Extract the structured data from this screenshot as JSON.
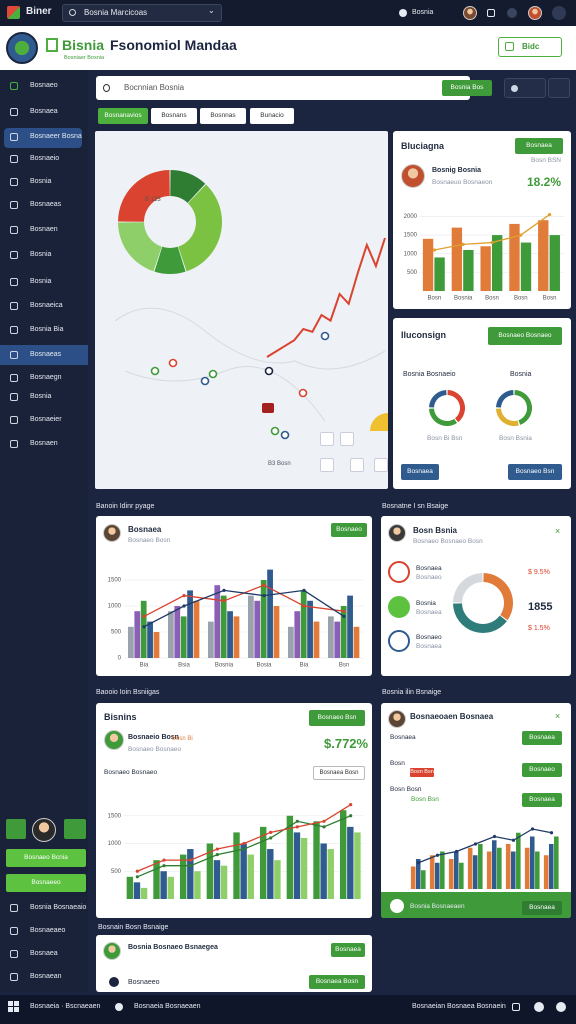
{
  "topbar": {
    "brand": "Biner",
    "search": "Bosnia Marcicoas",
    "user": "Bosnia"
  },
  "header": {
    "title_a": "Bisnia",
    "title_b": "Fsonomiol Mandaa",
    "subtitle": "Bosniaer Bosnia",
    "button": "Bidc"
  },
  "sidebar": {
    "items": [
      "Bosnaeo",
      "Bosnaea",
      "Bosnaeer Bosna",
      "Bosnaeio",
      "Bosnia",
      "Bosnaeas",
      "Bosnaen",
      "Bosnia",
      "Bosnia",
      "Bosnaeica",
      "Bosnia Bia",
      "Bosnaeas",
      "Bosnaegn",
      "Bosnia",
      "Bosnaeier",
      "Bosnaen"
    ],
    "actions": [
      "Bosnaeo Bcnia",
      "Bosnaeeo"
    ],
    "bottom_items": [
      "Bosnia Bosnaeaio",
      "Bosnaeaeo",
      "Bosnaea",
      "Bosnaean"
    ]
  },
  "search": {
    "placeholder": "Bocnnian Bosnia",
    "button": "Bosnia Bos"
  },
  "tabs": [
    "Bosnanavios",
    "Bosnans",
    "Bosnnas",
    "Bunacio"
  ],
  "map": {
    "donut": {
      "type": "pie",
      "values": [
        12,
        33,
        10,
        20,
        25
      ],
      "colors": [
        "#2e7d32",
        "#7cc242",
        "#3f9a3a",
        "#8fcf6a",
        "#d9432f"
      ],
      "label": "B 123"
    },
    "trend": {
      "type": "line",
      "values": [
        10,
        14,
        18,
        22,
        30,
        28,
        40,
        36,
        55,
        48,
        70,
        90,
        75,
        95
      ],
      "ylim": [
        0,
        100
      ],
      "color": "#d9432f"
    },
    "caption": "B3 Bosn"
  },
  "card_a": {
    "title": "Bluciagna",
    "button": "Bosnaea",
    "link": "Bosn BSN",
    "name": "Bosnig Bosnia",
    "sub": "Bosnaeuo Bosnaeon",
    "value": "18.2%",
    "chart": {
      "type": "bar",
      "ylim": [
        0,
        2200
      ],
      "yticks": [
        500,
        1000,
        1500,
        2000
      ],
      "categories": [
        "Bosn",
        "Bosnia",
        "Bosn",
        "Bosn",
        "Bosn"
      ],
      "series": [
        {
          "color": "#e07b39",
          "values": [
            1400,
            1700,
            1200,
            1800,
            1900
          ]
        },
        {
          "color": "#3f9a3a",
          "values": [
            900,
            1100,
            1500,
            1300,
            1500
          ]
        }
      ],
      "lines": [
        {
          "color": "#e0a030",
          "values": [
            1100,
            1250,
            1300,
            1500,
            2050
          ]
        }
      ]
    }
  },
  "card_b": {
    "title": "Iluconsign",
    "button": "Bosnaeo Bosnaeo",
    "label_a": "Bosnia Bosnaeio",
    "label_b": "Bosnia",
    "donut_a": {
      "type": "pie",
      "values": [
        40,
        35,
        25
      ],
      "colors": [
        "#d9432f",
        "#3f9a3a",
        "#2f5b8f"
      ]
    },
    "donut_b": {
      "type": "pie",
      "values": [
        45,
        30,
        25
      ],
      "colors": [
        "#3f9a3a",
        "#e0b030",
        "#2f5b8f"
      ]
    },
    "caption_a": "Bosn Bi Bsn",
    "caption_b": "Bosn Bsnia",
    "button_a": "Bosnaea",
    "button_b": "Bosnaeo Bsn"
  },
  "section_a": "Banoin Idinr pyage",
  "card_c": {
    "name": "Bosnaea",
    "sub": "Bosnaeo Bosn",
    "button": "Bosnaeo",
    "chart": {
      "type": "bar",
      "ylim": [
        0,
        2000
      ],
      "yticks": [
        0,
        500,
        1000,
        1500
      ],
      "categories": [
        "Bia",
        "Bsia",
        "Bosnia",
        "Bosia",
        "Bia",
        "Bsn"
      ],
      "series": [
        {
          "color": "#9aa3ad",
          "values": [
            600,
            900,
            700,
            1200,
            600,
            800
          ]
        },
        {
          "color": "#8b5fb5",
          "values": [
            900,
            1000,
            1400,
            1100,
            900,
            700
          ]
        },
        {
          "color": "#3f9a3a",
          "values": [
            1100,
            800,
            1200,
            1500,
            1300,
            1000
          ]
        },
        {
          "color": "#2f5b8f",
          "values": [
            700,
            1300,
            900,
            1700,
            1100,
            1200
          ]
        },
        {
          "color": "#e07b39",
          "values": [
            500,
            1100,
            800,
            1000,
            700,
            600
          ]
        }
      ],
      "lines": [
        {
          "color": "#d9432f",
          "values": [
            800,
            1200,
            1100,
            1400,
            1000,
            900
          ]
        },
        {
          "color": "#1f3a68",
          "values": [
            600,
            1000,
            1300,
            1200,
            1300,
            800
          ]
        }
      ]
    }
  },
  "section_b": "Bosnatne I sn Bsaige",
  "card_d": {
    "title": "Bosn Bsnia",
    "sub": "Bosnaeo Bosnaeo Bosn",
    "rows": [
      {
        "label": "Bosnaea",
        "sub": "Bosnaeo"
      },
      {
        "label": "Bosnia",
        "sub": "Bosnaea"
      },
      {
        "label": "Bosnaeo",
        "sub": "Bosnaea"
      }
    ],
    "donut": {
      "type": "pie",
      "values": [
        35,
        40,
        25
      ],
      "colors": [
        "#e07b39",
        "#2f7d7b",
        "#d5d9de"
      ]
    },
    "value_a": "$ 9.5%",
    "value_b": "1855",
    "value_c": "$ 1.5%"
  },
  "section_c": "Baooio Ioin Bsniigas",
  "card_e": {
    "title": "Bisnins",
    "button": "Bosnaeo Bsn",
    "name": "Bosnaeio Bosn",
    "tag": "Bosn Bi",
    "sub": "Bosnaeo Bosnaeo",
    "value": "$.772%",
    "label": "Bosnaeo Bosnaeo",
    "chip": "Bosnaea Bosn",
    "chart": {
      "type": "bar",
      "ylim": [
        0,
        2000
      ],
      "yticks": [
        500,
        1000,
        1500
      ],
      "categories": [
        null,
        null,
        null,
        null,
        null,
        null,
        null,
        null,
        null
      ],
      "series": [
        {
          "color": "#3f9a3a",
          "values": [
            400,
            700,
            800,
            1000,
            1200,
            1300,
            1500,
            1400,
            1600
          ]
        },
        {
          "color": "#2f5b8f",
          "values": [
            300,
            500,
            900,
            700,
            1000,
            900,
            1200,
            1000,
            1300
          ]
        },
        {
          "color": "#8fcf6a",
          "values": [
            200,
            400,
            500,
            600,
            800,
            700,
            1100,
            900,
            1200
          ]
        }
      ],
      "lines": [
        {
          "color": "#2e7d32",
          "values": [
            400,
            600,
            600,
            800,
            900,
            1100,
            1400,
            1300,
            1500
          ]
        },
        {
          "color": "#d9432f",
          "values": [
            500,
            700,
            700,
            900,
            1000,
            1200,
            1300,
            1400,
            1700
          ]
        }
      ]
    }
  },
  "section_d": "Bosnia ilin Bsnaige",
  "card_f": {
    "title": "Bosnaeoaen Bosnaea",
    "rows": [
      "Bosnaea",
      "Bosn",
      "Bosn Bosn"
    ],
    "badge_a": "Bosn Bsn",
    "badge_b": "Bosn Bsn",
    "buttons": [
      "Bosnaea",
      "Bosnaeo",
      "Bosnaea"
    ],
    "footer": "Bosnia Bosnaeaen",
    "footer_button": "Bosnaea",
    "chart": {
      "type": "bar",
      "ylim": [
        0,
        100
      ],
      "categories": [
        null,
        null,
        null,
        null,
        null,
        null,
        null,
        null
      ],
      "series": [
        {
          "color": "#e07b39",
          "values": [
            30,
            45,
            40,
            55,
            50,
            60,
            55,
            45
          ]
        },
        {
          "color": "#2f5b8f",
          "values": [
            40,
            35,
            50,
            45,
            65,
            50,
            70,
            60
          ]
        },
        {
          "color": "#3f9a3a",
          "values": [
            25,
            50,
            35,
            60,
            55,
            75,
            50,
            70
          ]
        }
      ],
      "lines": [
        {
          "color": "#1f3a68",
          "values": [
            35,
            45,
            50,
            60,
            70,
            65,
            80,
            75
          ]
        }
      ]
    }
  },
  "section_e": "Bosnain Bosn Bsnaige",
  "card_g": {
    "name": "Bosnia Bosnaeo Bsnaegea",
    "button": "Bosnaea",
    "row": "Bosnaeeo",
    "row_button": "Bosnaea Bosn"
  },
  "taskbar": {
    "left_a": "Bosnaeia · Bscnaeaen",
    "left_b": "Bosnaeia Bosnaeaen",
    "right": "Bosnaeian Bosnaea Bosnaein"
  }
}
